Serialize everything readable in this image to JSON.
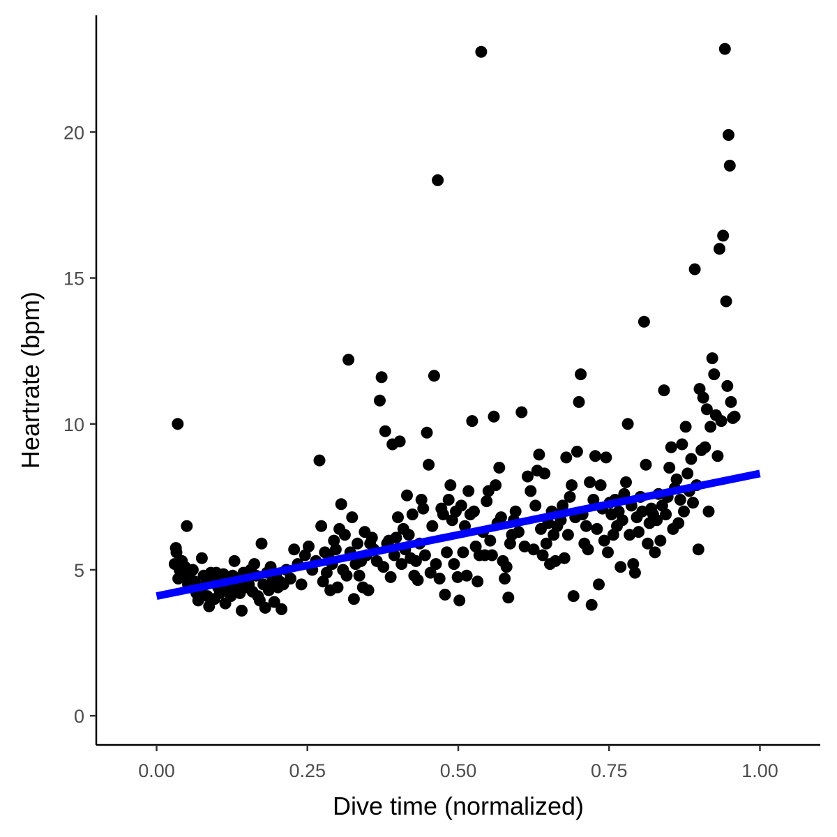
{
  "chart_data": {
    "type": "scatter",
    "title": "",
    "xlabel": "Dive time (normalized)",
    "ylabel": "Heartrate (bpm)",
    "xlim": [
      -0.1,
      1.1
    ],
    "ylim": [
      -1.0,
      24.0
    ],
    "grid": false,
    "x_ticks": [
      0.0,
      0.25,
      0.5,
      0.75,
      1.0
    ],
    "x_tick_labels": [
      "0.00",
      "0.25",
      "0.50",
      "0.75",
      "1.00"
    ],
    "y_ticks": [
      0,
      5,
      10,
      15,
      20
    ],
    "y_tick_labels": [
      "0",
      "5",
      "10",
      "15",
      "20"
    ],
    "point_color": "#000000",
    "trend": {
      "type": "linear",
      "color": "#0000ff",
      "x": [
        0.0,
        1.0
      ],
      "y": [
        4.1,
        8.3
      ]
    },
    "points": [
      [
        0.03,
        5.2
      ],
      [
        0.032,
        5.75
      ],
      [
        0.033,
        5.6
      ],
      [
        0.035,
        10.0
      ],
      [
        0.036,
        4.7
      ],
      [
        0.038,
        5.0
      ],
      [
        0.04,
        4.8
      ],
      [
        0.042,
        5.3
      ],
      [
        0.045,
        4.9
      ],
      [
        0.047,
        5.1
      ],
      [
        0.05,
        6.5
      ],
      [
        0.052,
        4.5
      ],
      [
        0.055,
        4.7
      ],
      [
        0.058,
        4.4
      ],
      [
        0.06,
        5.0
      ],
      [
        0.063,
        4.6
      ],
      [
        0.066,
        4.2
      ],
      [
        0.069,
        3.95
      ],
      [
        0.072,
        4.3
      ],
      [
        0.075,
        5.4
      ],
      [
        0.078,
        4.8
      ],
      [
        0.081,
        4.5
      ],
      [
        0.084,
        4.1
      ],
      [
        0.087,
        3.75
      ],
      [
        0.09,
        4.9
      ],
      [
        0.093,
        4.6
      ],
      [
        0.096,
        4.0
      ],
      [
        0.099,
        4.9
      ],
      [
        0.102,
        4.4
      ],
      [
        0.105,
        4.2
      ],
      [
        0.108,
        4.7
      ],
      [
        0.111,
        4.85
      ],
      [
        0.114,
        3.85
      ],
      [
        0.117,
        4.6
      ],
      [
        0.12,
        4.3
      ],
      [
        0.123,
        4.1
      ],
      [
        0.126,
        4.8
      ],
      [
        0.129,
        5.3
      ],
      [
        0.132,
        4.5
      ],
      [
        0.135,
        4.6
      ],
      [
        0.138,
        4.2
      ],
      [
        0.141,
        3.6
      ],
      [
        0.144,
        4.9
      ],
      [
        0.147,
        4.4
      ],
      [
        0.15,
        4.7
      ],
      [
        0.153,
        4.5
      ],
      [
        0.156,
        5.0
      ],
      [
        0.159,
        4.25
      ],
      [
        0.162,
        5.2
      ],
      [
        0.165,
        4.8
      ],
      [
        0.168,
        4.1
      ],
      [
        0.171,
        3.95
      ],
      [
        0.174,
        5.9
      ],
      [
        0.177,
        4.5
      ],
      [
        0.18,
        3.7
      ],
      [
        0.183,
        4.9
      ],
      [
        0.186,
        4.3
      ],
      [
        0.189,
        5.1
      ],
      [
        0.192,
        4.6
      ],
      [
        0.195,
        3.9
      ],
      [
        0.198,
        4.8
      ],
      [
        0.201,
        4.4
      ],
      [
        0.204,
        4.6
      ],
      [
        0.207,
        3.65
      ],
      [
        0.21,
        4.5
      ],
      [
        0.215,
        5.0
      ],
      [
        0.222,
        4.7
      ],
      [
        0.228,
        5.7
      ],
      [
        0.234,
        5.2
      ],
      [
        0.24,
        4.5
      ],
      [
        0.246,
        5.5
      ],
      [
        0.252,
        5.8
      ],
      [
        0.258,
        5.0
      ],
      [
        0.264,
        5.3
      ],
      [
        0.27,
        8.75
      ],
      [
        0.273,
        6.5
      ],
      [
        0.276,
        4.6
      ],
      [
        0.279,
        5.6
      ],
      [
        0.282,
        4.9
      ],
      [
        0.285,
        5.5
      ],
      [
        0.288,
        4.3
      ],
      [
        0.291,
        5.2
      ],
      [
        0.294,
        6.0
      ],
      [
        0.297,
        5.7
      ],
      [
        0.3,
        4.4
      ],
      [
        0.303,
        6.4
      ],
      [
        0.306,
        7.25
      ],
      [
        0.309,
        5.0
      ],
      [
        0.312,
        6.2
      ],
      [
        0.315,
        4.8
      ],
      [
        0.318,
        12.2
      ],
      [
        0.321,
        5.6
      ],
      [
        0.324,
        6.8
      ],
      [
        0.327,
        4.0
      ],
      [
        0.33,
        5.2
      ],
      [
        0.333,
        5.9
      ],
      [
        0.336,
        4.8
      ],
      [
        0.339,
        5.3
      ],
      [
        0.342,
        4.4
      ],
      [
        0.345,
        6.3
      ],
      [
        0.348,
        5.5
      ],
      [
        0.351,
        4.3
      ],
      [
        0.354,
        5.9
      ],
      [
        0.357,
        6.1
      ],
      [
        0.36,
        5.7
      ],
      [
        0.365,
        5.3
      ],
      [
        0.37,
        10.8
      ],
      [
        0.373,
        11.6
      ],
      [
        0.376,
        5.1
      ],
      [
        0.379,
        9.75
      ],
      [
        0.382,
        5.9
      ],
      [
        0.385,
        6.0
      ],
      [
        0.388,
        4.75
      ],
      [
        0.391,
        9.3
      ],
      [
        0.394,
        5.5
      ],
      [
        0.397,
        6.1
      ],
      [
        0.4,
        6.8
      ],
      [
        0.403,
        9.4
      ],
      [
        0.406,
        5.2
      ],
      [
        0.409,
        6.4
      ],
      [
        0.412,
        5.7
      ],
      [
        0.415,
        7.55
      ],
      [
        0.418,
        6.2
      ],
      [
        0.421,
        5.4
      ],
      [
        0.424,
        6.9
      ],
      [
        0.427,
        4.8
      ],
      [
        0.43,
        5.3
      ],
      [
        0.433,
        4.65
      ],
      [
        0.436,
        5.9
      ],
      [
        0.439,
        7.4
      ],
      [
        0.442,
        7.1
      ],
      [
        0.445,
        5.5
      ],
      [
        0.448,
        9.7
      ],
      [
        0.451,
        8.6
      ],
      [
        0.454,
        4.9
      ],
      [
        0.457,
        6.5
      ],
      [
        0.46,
        11.65
      ],
      [
        0.463,
        5.2
      ],
      [
        0.466,
        18.35
      ],
      [
        0.469,
        4.7
      ],
      [
        0.472,
        7.1
      ],
      [
        0.475,
        6.9
      ],
      [
        0.478,
        4.15
      ],
      [
        0.481,
        5.6
      ],
      [
        0.484,
        7.4
      ],
      [
        0.487,
        7.9
      ],
      [
        0.49,
        6.7
      ],
      [
        0.493,
        5.2
      ],
      [
        0.496,
        7.0
      ],
      [
        0.499,
        4.75
      ],
      [
        0.502,
        3.95
      ],
      [
        0.505,
        7.2
      ],
      [
        0.508,
        5.6
      ],
      [
        0.511,
        6.5
      ],
      [
        0.514,
        4.8
      ],
      [
        0.517,
        7.7
      ],
      [
        0.52,
        6.9
      ],
      [
        0.523,
        10.1
      ],
      [
        0.526,
        7.0
      ],
      [
        0.529,
        5.8
      ],
      [
        0.532,
        4.6
      ],
      [
        0.535,
        5.5
      ],
      [
        0.538,
        22.75
      ],
      [
        0.541,
        6.3
      ],
      [
        0.544,
        5.5
      ],
      [
        0.547,
        7.35
      ],
      [
        0.55,
        7.7
      ],
      [
        0.553,
        6.0
      ],
      [
        0.556,
        5.5
      ],
      [
        0.559,
        10.25
      ],
      [
        0.562,
        7.9
      ],
      [
        0.565,
        6.6
      ],
      [
        0.568,
        8.5
      ],
      [
        0.571,
        6.8
      ],
      [
        0.574,
        5.3
      ],
      [
        0.577,
        4.7
      ],
      [
        0.58,
        5.1
      ],
      [
        0.583,
        4.05
      ],
      [
        0.586,
        5.9
      ],
      [
        0.589,
        6.2
      ],
      [
        0.592,
        6.7
      ],
      [
        0.595,
        7.0
      ],
      [
        0.6,
        6.3
      ],
      [
        0.605,
        10.4
      ],
      [
        0.61,
        5.8
      ],
      [
        0.615,
        8.2
      ],
      [
        0.62,
        7.7
      ],
      [
        0.625,
        5.7
      ],
      [
        0.628,
        7.2
      ],
      [
        0.631,
        8.4
      ],
      [
        0.634,
        8.95
      ],
      [
        0.637,
        6.4
      ],
      [
        0.64,
        5.5
      ],
      [
        0.643,
        8.3
      ],
      [
        0.646,
        5.9
      ],
      [
        0.649,
        6.6
      ],
      [
        0.652,
        5.2
      ],
      [
        0.655,
        7.0
      ],
      [
        0.658,
        6.2
      ],
      [
        0.661,
        5.3
      ],
      [
        0.664,
        6.5
      ],
      [
        0.667,
        6.9
      ],
      [
        0.67,
        6.7
      ],
      [
        0.673,
        7.2
      ],
      [
        0.676,
        5.4
      ],
      [
        0.679,
        8.85
      ],
      [
        0.682,
        6.2
      ],
      [
        0.685,
        7.5
      ],
      [
        0.688,
        7.9
      ],
      [
        0.691,
        4.1
      ],
      [
        0.694,
        6.8
      ],
      [
        0.697,
        9.05
      ],
      [
        0.7,
        10.75
      ],
      [
        0.703,
        11.7
      ],
      [
        0.706,
        6.9
      ],
      [
        0.709,
        5.9
      ],
      [
        0.712,
        6.5
      ],
      [
        0.715,
        5.7
      ],
      [
        0.718,
        8.0
      ],
      [
        0.721,
        3.8
      ],
      [
        0.724,
        7.4
      ],
      [
        0.727,
        8.9
      ],
      [
        0.73,
        6.4
      ],
      [
        0.733,
        4.5
      ],
      [
        0.736,
        7.9
      ],
      [
        0.739,
        7.1
      ],
      [
        0.742,
        6.0
      ],
      [
        0.745,
        8.85
      ],
      [
        0.748,
        5.6
      ],
      [
        0.751,
        7.3
      ],
      [
        0.754,
        6.9
      ],
      [
        0.757,
        6.2
      ],
      [
        0.76,
        7.4
      ],
      [
        0.763,
        6.5
      ],
      [
        0.766,
        7.0
      ],
      [
        0.769,
        5.1
      ],
      [
        0.772,
        6.7
      ],
      [
        0.775,
        7.6
      ],
      [
        0.778,
        8.0
      ],
      [
        0.781,
        10.0
      ],
      [
        0.784,
        6.2
      ],
      [
        0.787,
        7.2
      ],
      [
        0.79,
        5.2
      ],
      [
        0.793,
        4.9
      ],
      [
        0.796,
        6.8
      ],
      [
        0.799,
        6.3
      ],
      [
        0.802,
        7.5
      ],
      [
        0.805,
        7.0
      ],
      [
        0.808,
        13.5
      ],
      [
        0.811,
        8.6
      ],
      [
        0.814,
        5.9
      ],
      [
        0.817,
        6.6
      ],
      [
        0.82,
        7.1
      ],
      [
        0.823,
        6.9
      ],
      [
        0.826,
        5.6
      ],
      [
        0.829,
        6.7
      ],
      [
        0.832,
        7.6
      ],
      [
        0.835,
        6.0
      ],
      [
        0.838,
        7.2
      ],
      [
        0.841,
        11.15
      ],
      [
        0.844,
        6.9
      ],
      [
        0.847,
        7.5
      ],
      [
        0.85,
        8.5
      ],
      [
        0.853,
        9.2
      ],
      [
        0.856,
        6.4
      ],
      [
        0.859,
        7.8
      ],
      [
        0.862,
        8.1
      ],
      [
        0.865,
        6.6
      ],
      [
        0.868,
        7.4
      ],
      [
        0.871,
        9.3
      ],
      [
        0.874,
        7.0
      ],
      [
        0.877,
        9.9
      ],
      [
        0.88,
        8.3
      ],
      [
        0.883,
        7.7
      ],
      [
        0.886,
        8.8
      ],
      [
        0.889,
        7.3
      ],
      [
        0.892,
        15.3
      ],
      [
        0.895,
        7.9
      ],
      [
        0.898,
        5.7
      ],
      [
        0.9,
        11.2
      ],
      [
        0.903,
        9.1
      ],
      [
        0.906,
        10.9
      ],
      [
        0.909,
        9.2
      ],
      [
        0.912,
        10.5
      ],
      [
        0.915,
        7.0
      ],
      [
        0.918,
        9.9
      ],
      [
        0.921,
        12.25
      ],
      [
        0.924,
        11.7
      ],
      [
        0.927,
        10.3
      ],
      [
        0.93,
        8.9
      ],
      [
        0.933,
        16.0
      ],
      [
        0.936,
        10.1
      ],
      [
        0.939,
        16.45
      ],
      [
        0.942,
        22.85
      ],
      [
        0.944,
        14.2
      ],
      [
        0.946,
        11.3
      ],
      [
        0.948,
        19.9
      ],
      [
        0.95,
        18.85
      ],
      [
        0.952,
        10.75
      ],
      [
        0.955,
        10.2
      ],
      [
        0.958,
        10.25
      ]
    ]
  }
}
